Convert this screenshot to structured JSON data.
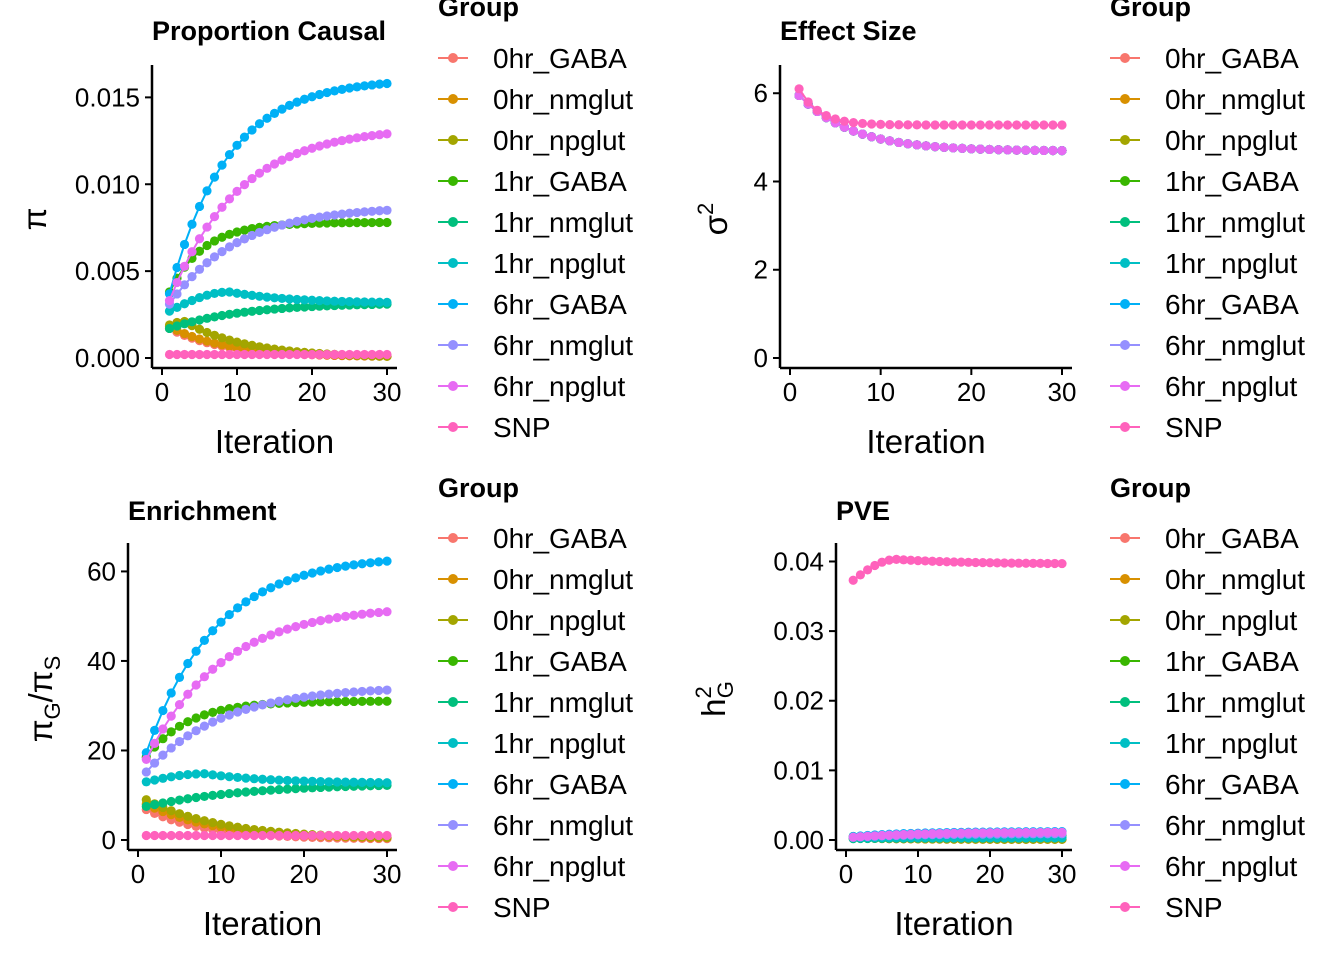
{
  "legend": {
    "title": "Group",
    "groups": [
      "0hr_GABA",
      "0hr_nmglut",
      "0hr_npglut",
      "1hr_GABA",
      "1hr_nmglut",
      "1hr_npglut",
      "6hr_GABA",
      "6hr_nmglut",
      "6hr_npglut",
      "SNP"
    ],
    "colors": [
      "#F8766D",
      "#D89000",
      "#A3A500",
      "#39B600",
      "#00BF7D",
      "#00BFC4",
      "#00B0F6",
      "#9590FF",
      "#E76BF3",
      "#FF62BC"
    ]
  },
  "chart_data": [
    {
      "id": "proportion",
      "type": "line",
      "title": "Proportion Causal",
      "xlabel": "Iteration",
      "ylabel": "π",
      "xlim": [
        0,
        30
      ],
      "ylim": [
        0,
        0.016
      ],
      "xticks": [
        "0",
        "10",
        "20",
        "30"
      ],
      "yticks": [
        "0.000",
        "0.005",
        "0.010",
        "0.015"
      ],
      "series": [
        {
          "name": "0hr_GABA",
          "start": 0.0017,
          "end": 0.0001,
          "shape": "exp",
          "rate": 0.14
        },
        {
          "name": "0hr_nmglut",
          "start": 0.0018,
          "end": 0.0001,
          "shape": "exp",
          "rate": 0.13
        },
        {
          "name": "0hr_npglut",
          "start": 0.0019,
          "end": 0.0001,
          "shape": "hump",
          "peak": 0.0021,
          "peak_at": 3,
          "rate": 0.12
        },
        {
          "name": "1hr_GABA",
          "start": 0.0038,
          "end": 0.0078,
          "shape": "exp",
          "rate": 0.22
        },
        {
          "name": "1hr_nmglut",
          "start": 0.0017,
          "end": 0.0031,
          "shape": "exp",
          "rate": 0.1
        },
        {
          "name": "1hr_npglut",
          "start": 0.0027,
          "end": 0.0032,
          "shape": "hump",
          "peak": 0.0038,
          "peak_at": 9,
          "rate": 0.12
        },
        {
          "name": "6hr_GABA",
          "start": 0.0037,
          "end": 0.0158,
          "shape": "exp",
          "rate": 0.13
        },
        {
          "name": "6hr_nmglut",
          "start": 0.0031,
          "end": 0.0085,
          "shape": "exp",
          "rate": 0.11
        },
        {
          "name": "6hr_npglut",
          "start": 0.0033,
          "end": 0.0129,
          "shape": "exp",
          "rate": 0.11
        },
        {
          "name": "SNP",
          "start": 0.0002,
          "end": 0.0002,
          "shape": "exp",
          "rate": 0.1
        }
      ]
    },
    {
      "id": "effect",
      "type": "line",
      "title": "Effect Size",
      "xlabel": "Iteration",
      "ylabel": "σ²",
      "xlim": [
        0,
        30
      ],
      "ylim": [
        0,
        6.3
      ],
      "xticks": [
        "0",
        "10",
        "20",
        "30"
      ],
      "yticks": [
        "0",
        "2",
        "4",
        "6"
      ],
      "series": [
        {
          "name": "0hr_GABA",
          "start": 5.95,
          "end": 4.7,
          "shape": "exp",
          "rate": 0.17
        },
        {
          "name": "0hr_nmglut",
          "start": 5.95,
          "end": 4.7,
          "shape": "exp",
          "rate": 0.17
        },
        {
          "name": "0hr_npglut",
          "start": 5.95,
          "end": 4.7,
          "shape": "exp",
          "rate": 0.17
        },
        {
          "name": "1hr_GABA",
          "start": 5.95,
          "end": 4.7,
          "shape": "exp",
          "rate": 0.17
        },
        {
          "name": "1hr_nmglut",
          "start": 5.95,
          "end": 4.7,
          "shape": "exp",
          "rate": 0.17
        },
        {
          "name": "1hr_npglut",
          "start": 5.95,
          "end": 4.7,
          "shape": "exp",
          "rate": 0.17
        },
        {
          "name": "6hr_GABA",
          "start": 5.95,
          "end": 4.7,
          "shape": "exp",
          "rate": 0.17
        },
        {
          "name": "6hr_nmglut",
          "start": 5.95,
          "end": 4.7,
          "shape": "exp",
          "rate": 0.17
        },
        {
          "name": "6hr_npglut",
          "start": 5.95,
          "end": 4.7,
          "shape": "exp",
          "rate": 0.17
        },
        {
          "name": "SNP",
          "start": 6.1,
          "end": 5.28,
          "shape": "exp",
          "rate": 0.45
        }
      ]
    },
    {
      "id": "enrichment",
      "type": "line",
      "title": "Enrichment",
      "xlabel": "Iteration",
      "ylabel": "πG/πS",
      "xlim": [
        0,
        30
      ],
      "ylim": [
        0,
        63
      ],
      "xticks": [
        "0",
        "10",
        "20",
        "30"
      ],
      "yticks": [
        "0",
        "20",
        "40",
        "60"
      ],
      "series": [
        {
          "name": "0hr_GABA",
          "start": 6.8,
          "end": 0.3,
          "shape": "exp",
          "rate": 0.14
        },
        {
          "name": "0hr_nmglut",
          "start": 8.0,
          "end": 0.5,
          "shape": "exp",
          "rate": 0.12
        },
        {
          "name": "0hr_npglut",
          "start": 9.0,
          "end": 0.6,
          "shape": "exp",
          "rate": 0.11
        },
        {
          "name": "1hr_GABA",
          "start": 18.5,
          "end": 31.0,
          "shape": "exp",
          "rate": 0.2
        },
        {
          "name": "1hr_nmglut",
          "start": 7.5,
          "end": 12.2,
          "shape": "exp",
          "rate": 0.08
        },
        {
          "name": "1hr_npglut",
          "start": 13.0,
          "end": 12.8,
          "shape": "hump",
          "peak": 14.8,
          "peak_at": 8,
          "rate": 0.12
        },
        {
          "name": "6hr_GABA",
          "start": 19.5,
          "end": 62.3,
          "shape": "exp",
          "rate": 0.12
        },
        {
          "name": "6hr_nmglut",
          "start": 15.2,
          "end": 33.5,
          "shape": "exp",
          "rate": 0.11
        },
        {
          "name": "6hr_npglut",
          "start": 18.0,
          "end": 51.0,
          "shape": "exp",
          "rate": 0.11
        },
        {
          "name": "SNP",
          "start": 1.0,
          "end": 1.0,
          "shape": "exp",
          "rate": 0.1
        }
      ]
    },
    {
      "id": "pve",
      "type": "line",
      "title": "PVE",
      "xlabel": "Iteration",
      "ylabel": "h²G",
      "xlim": [
        0,
        30
      ],
      "ylim": [
        0,
        0.0405
      ],
      "xticks": [
        "0",
        "10",
        "20",
        "30"
      ],
      "yticks": [
        "0.00",
        "0.01",
        "0.02",
        "0.03",
        "0.04"
      ],
      "series": [
        {
          "name": "0hr_GABA",
          "start": 0.0003,
          "end": 0.0001,
          "shape": "exp",
          "rate": 0.14
        },
        {
          "name": "0hr_nmglut",
          "start": 0.0003,
          "end": 0.0001,
          "shape": "exp",
          "rate": 0.13
        },
        {
          "name": "0hr_npglut",
          "start": 0.0003,
          "end": 0.0001,
          "shape": "exp",
          "rate": 0.12
        },
        {
          "name": "1hr_GABA",
          "start": 0.0005,
          "end": 0.0007,
          "shape": "exp",
          "rate": 0.2
        },
        {
          "name": "1hr_nmglut",
          "start": 0.0002,
          "end": 0.0003,
          "shape": "exp",
          "rate": 0.1
        },
        {
          "name": "1hr_npglut",
          "start": 0.0003,
          "end": 0.0003,
          "shape": "exp",
          "rate": 0.1
        },
        {
          "name": "6hr_GABA",
          "start": 0.0005,
          "end": 0.0012,
          "shape": "exp",
          "rate": 0.12
        },
        {
          "name": "6hr_nmglut",
          "start": 0.0004,
          "end": 0.0009,
          "shape": "exp",
          "rate": 0.11
        },
        {
          "name": "6hr_npglut",
          "start": 0.0004,
          "end": 0.0011,
          "shape": "exp",
          "rate": 0.11
        },
        {
          "name": "SNP",
          "start": 0.0373,
          "end": 0.0397,
          "shape": "hump",
          "peak": 0.0403,
          "peak_at": 7,
          "rate": 0.1
        }
      ]
    }
  ]
}
